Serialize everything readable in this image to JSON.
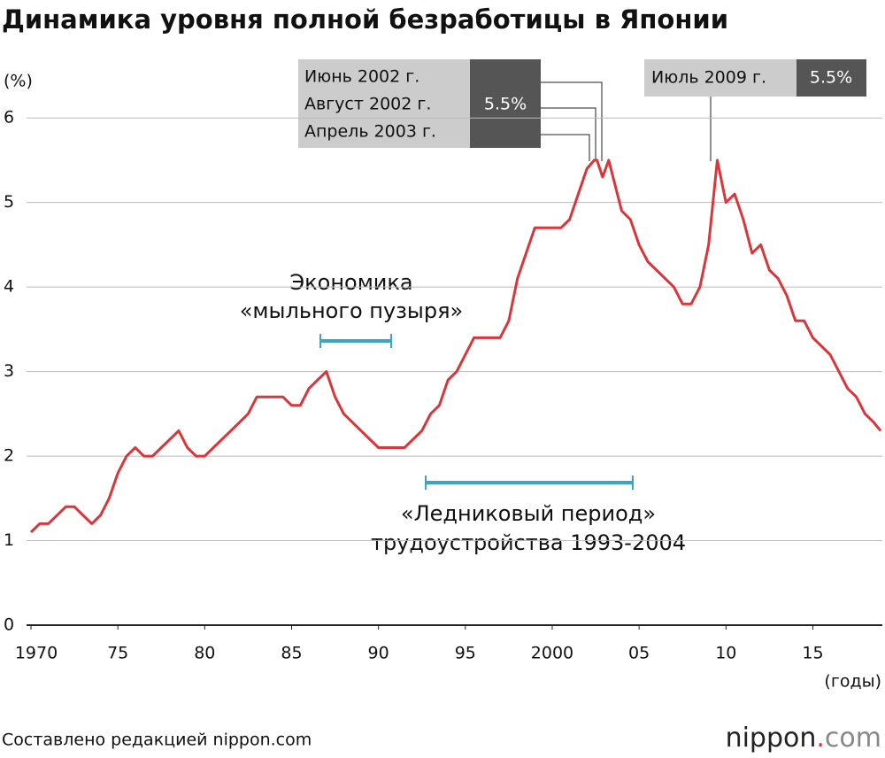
{
  "chart_data": {
    "type": "line",
    "title": "Динамика уровня полной безработицы в Японии",
    "y_unit": "(%)",
    "x_unit": "(годы)",
    "source": "Составлено редакцией nippon.com",
    "logo": [
      "nippon",
      ".",
      "com"
    ],
    "xlim": [
      1970,
      2019
    ],
    "ylim": [
      0,
      6.4
    ],
    "xticks": [
      1970,
      {
        "value": 1975,
        "label": "75"
      },
      {
        "value": 1980,
        "label": "80"
      },
      {
        "value": 1985,
        "label": "85"
      },
      {
        "value": 1990,
        "label": "90"
      },
      {
        "value": 1995,
        "label": "95"
      },
      2000,
      {
        "value": 2005,
        "label": "05"
      },
      {
        "value": 2010,
        "label": "10"
      },
      {
        "value": 2015,
        "label": "15"
      }
    ],
    "yticks": [
      0,
      1,
      2,
      3,
      4,
      5,
      6
    ],
    "grid": true,
    "series": [
      {
        "color": "#d8363a",
        "x": [
          1970,
          1970.5,
          1971,
          1971.5,
          1972,
          1972.5,
          1973,
          1973.5,
          1974,
          1974.5,
          1975,
          1975.5,
          1976,
          1976.5,
          1977,
          1977.5,
          1978,
          1978.5,
          1979,
          1979.5,
          1980,
          1980.5,
          1981,
          1981.5,
          1982,
          1982.5,
          1983,
          1983.5,
          1984,
          1984.5,
          1985,
          1985.5,
          1986,
          1986.5,
          1987,
          1987.5,
          1988,
          1988.5,
          1989,
          1989.5,
          1990,
          1990.5,
          1991,
          1991.5,
          1992,
          1992.5,
          1993,
          1993.5,
          1994,
          1994.5,
          1995,
          1995.5,
          1996,
          1996.5,
          1997,
          1997.5,
          1998,
          1998.5,
          1999,
          1999.5,
          2000,
          2000.5,
          2001,
          2001.5,
          2002,
          2002.42,
          2002.58,
          2002.9,
          2003.25,
          2003.5,
          2004,
          2004.5,
          2005,
          2005.5,
          2006,
          2006.5,
          2007,
          2007.5,
          2008,
          2008.5,
          2009,
          2009.5,
          2010,
          2010.5,
          2011,
          2011.5,
          2012,
          2012.5,
          2013,
          2013.5,
          2014,
          2014.5,
          2015,
          2015.5,
          2016,
          2016.5,
          2017,
          2017.5,
          2018,
          2018.5,
          2018.9
        ],
        "values": [
          1.1,
          1.2,
          1.2,
          1.3,
          1.4,
          1.4,
          1.3,
          1.2,
          1.3,
          1.5,
          1.8,
          2.0,
          2.1,
          2.0,
          2.0,
          2.1,
          2.2,
          2.3,
          2.1,
          2.0,
          2.0,
          2.1,
          2.2,
          2.3,
          2.4,
          2.5,
          2.7,
          2.7,
          2.7,
          2.7,
          2.6,
          2.6,
          2.8,
          2.9,
          3.0,
          2.7,
          2.5,
          2.4,
          2.3,
          2.2,
          2.1,
          2.1,
          2.1,
          2.1,
          2.2,
          2.3,
          2.5,
          2.6,
          2.9,
          3.0,
          3.2,
          3.4,
          3.4,
          3.4,
          3.4,
          3.6,
          4.1,
          4.4,
          4.7,
          4.7,
          4.7,
          4.7,
          4.8,
          5.1,
          5.4,
          5.5,
          5.5,
          5.3,
          5.5,
          5.3,
          4.9,
          4.8,
          4.5,
          4.3,
          4.2,
          4.1,
          4.0,
          3.8,
          3.8,
          4.0,
          4.5,
          5.5,
          5.0,
          5.1,
          4.8,
          4.4,
          4.5,
          4.2,
          4.1,
          3.9,
          3.6,
          3.6,
          3.4,
          3.3,
          3.2,
          3.0,
          2.8,
          2.7,
          2.5,
          2.4,
          2.3
        ]
      }
    ],
    "annotations": [
      {
        "labels": [
          "Июнь 2002 г.",
          "Август 2002 г.",
          "Апрель 2003 г."
        ],
        "value": 5.5,
        "value_label": "5.5%"
      },
      {
        "labels": [
          "Июль 2009 г."
        ],
        "value": 5.5,
        "value_label": "5.5%"
      },
      {
        "text": [
          "Экономика",
          "«мыльного пузыря»"
        ]
      },
      {
        "text": [
          "«Ледниковый период»",
          "трудоустройства 1993-2004"
        ]
      }
    ]
  }
}
